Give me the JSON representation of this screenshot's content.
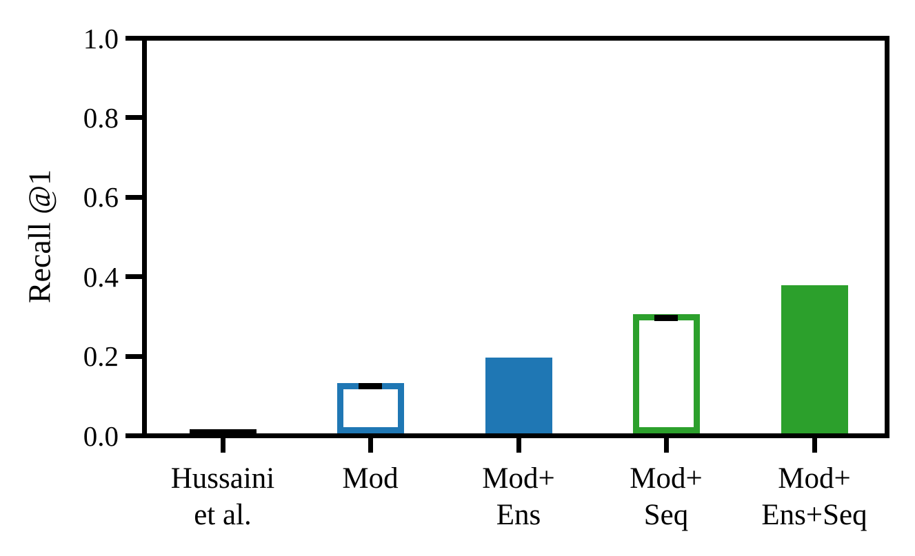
{
  "chart_data": {
    "type": "bar",
    "title": "",
    "xlabel": "",
    "ylabel": "Recall @1",
    "ylim": [
      0.0,
      1.0
    ],
    "yticks": [
      0.0,
      0.2,
      0.4,
      0.6,
      0.8,
      1.0
    ],
    "ytick_labels": [
      "0.0",
      "0.2",
      "0.4",
      "0.6",
      "0.8",
      "1.0"
    ],
    "grid": false,
    "legend": null,
    "categories": [
      "Hussaini\net al.",
      "Mod",
      "Mod+\nEns",
      "Mod+\nSeq",
      "Mod+\nEns+Seq"
    ],
    "bars": [
      {
        "label_lines": [
          "Hussaini",
          "et al."
        ],
        "value": 0.01,
        "style": "solid",
        "color": "#000000",
        "error_cap": null
      },
      {
        "label_lines": [
          "Mod"
        ],
        "value": 0.128,
        "style": "outline",
        "color": "#1f77b4",
        "error_cap": 0.121
      },
      {
        "label_lines": [
          "Mod+",
          "Ens"
        ],
        "value": 0.193,
        "style": "solid",
        "color": "#1f77b4",
        "error_cap": null
      },
      {
        "label_lines": [
          "Mod+",
          "Seq"
        ],
        "value": 0.303,
        "style": "outline",
        "color": "#2ca02c",
        "error_cap": 0.294
      },
      {
        "label_lines": [
          "Mod+",
          "Ens+Seq"
        ],
        "value": 0.378,
        "style": "solid",
        "color": "#2ca02c",
        "error_cap": null
      }
    ],
    "axis_color": "#000000",
    "error_bar_color": "#000000",
    "background_color": "#ffffff"
  }
}
